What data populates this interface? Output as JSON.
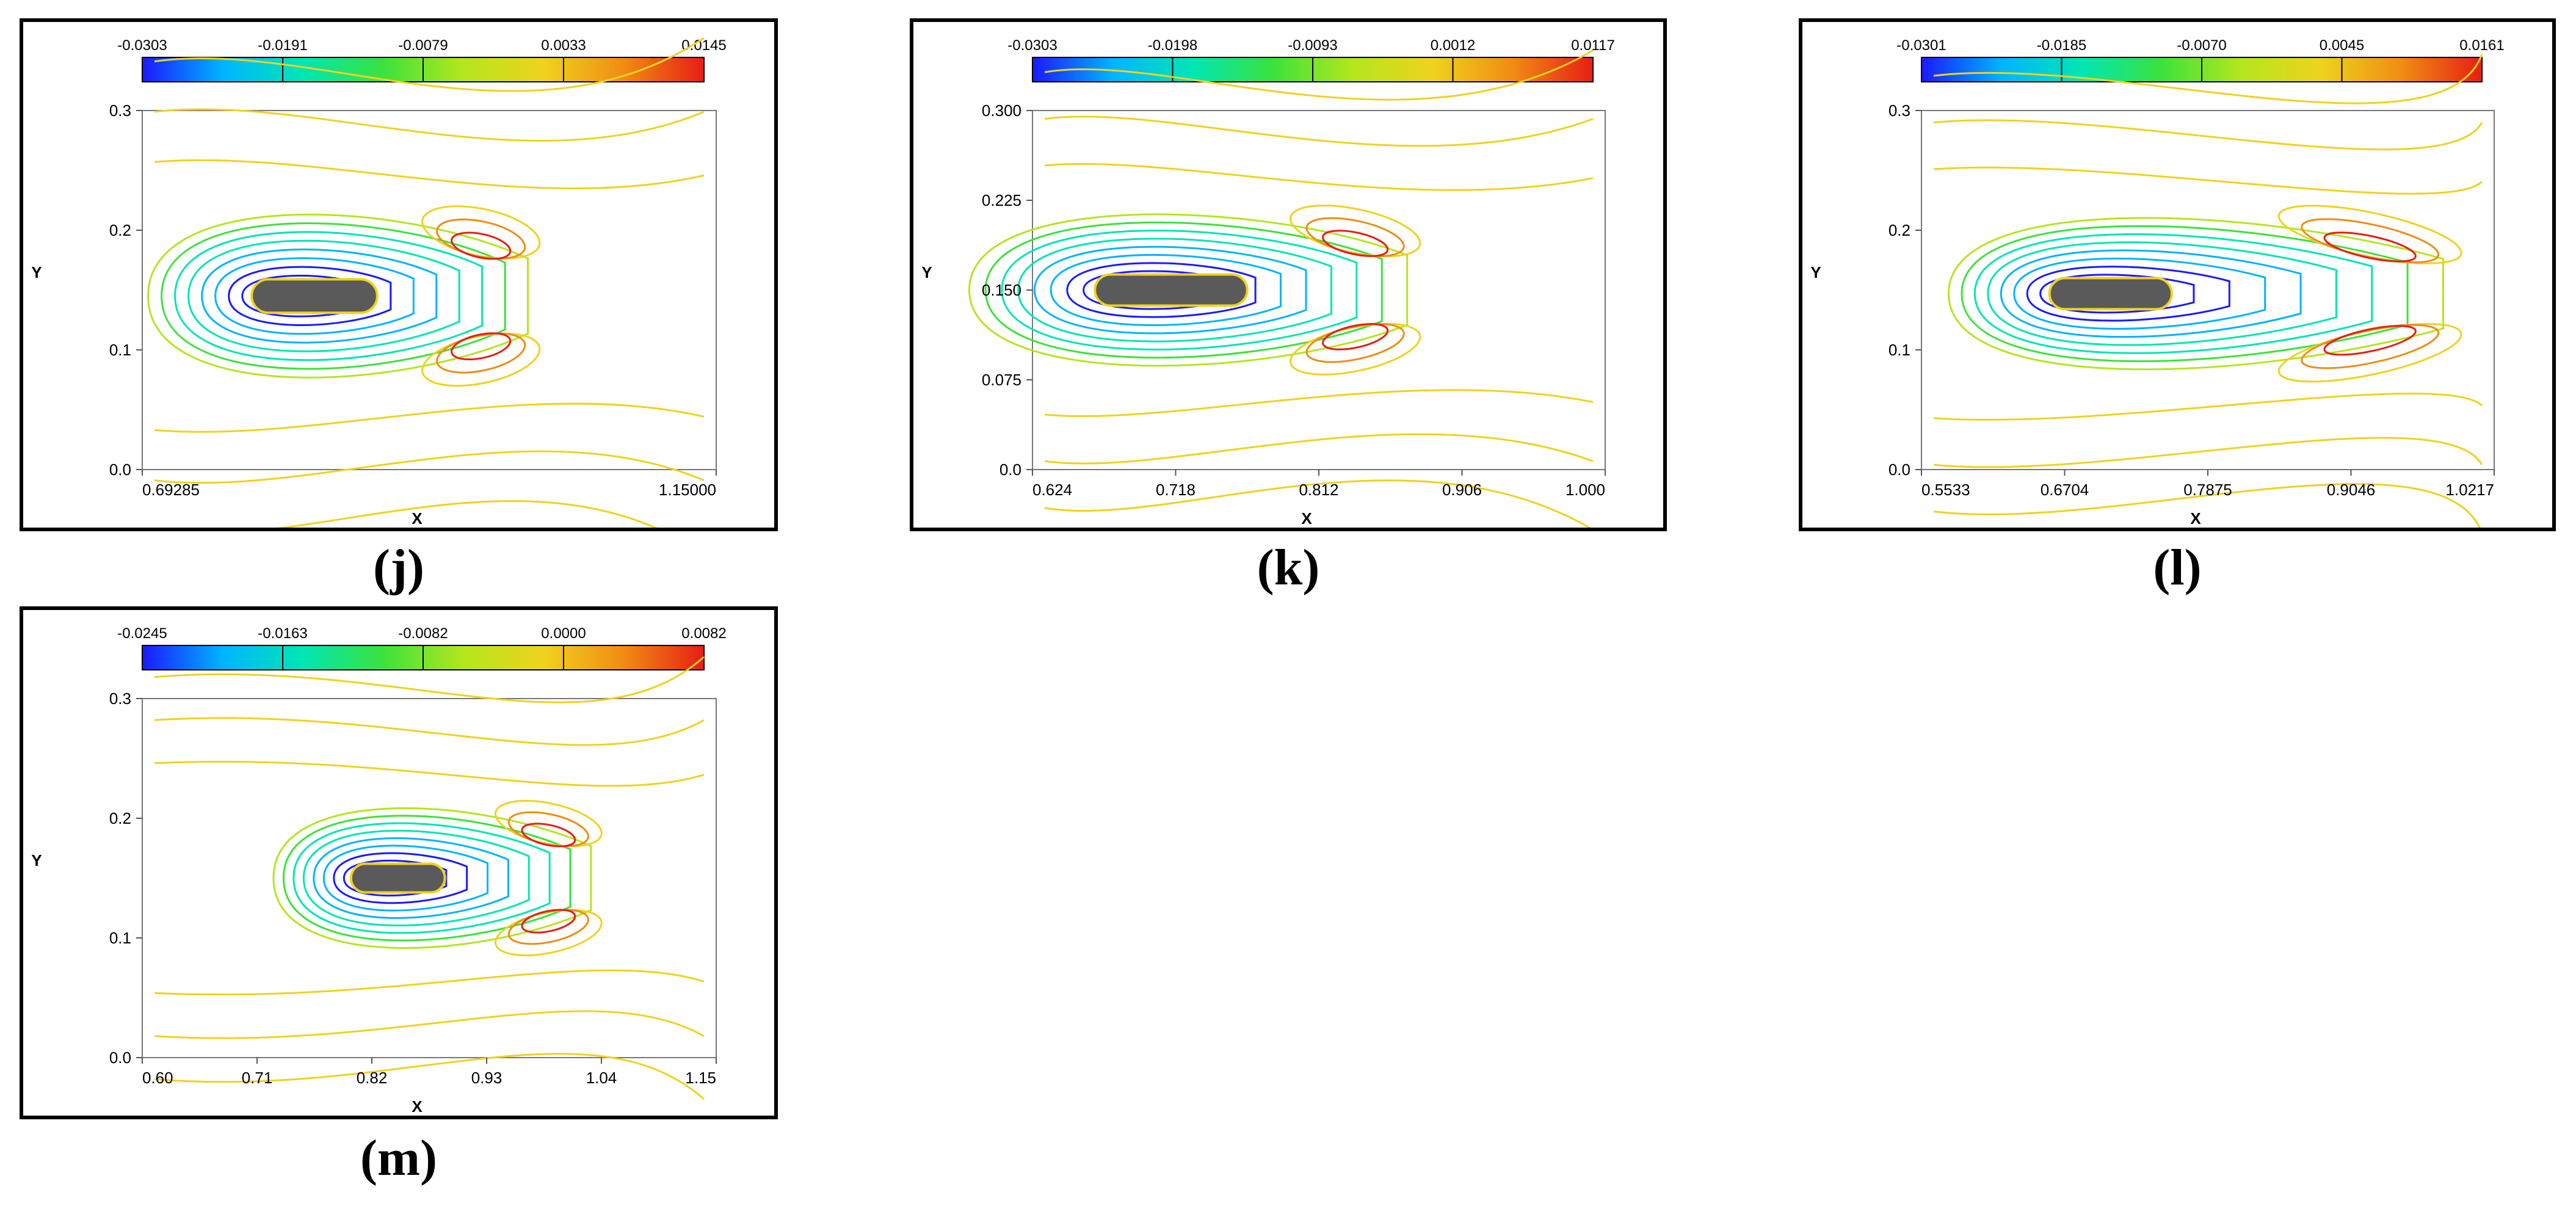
{
  "chart_data": [
    {
      "type": "contour",
      "panel_label": "j",
      "xlabel": "X",
      "ylabel": "Y",
      "xlim": [
        0.69285,
        1.15
      ],
      "ylim": [
        0.0,
        0.3
      ],
      "x_ticks": [
        "0.69285",
        "1.15000"
      ],
      "y_ticks": [
        "0.0",
        "0.1",
        "0.2",
        "0.3"
      ],
      "colorbar": {
        "min": -0.0303,
        "max": 0.0145,
        "ticks": [
          "-0.0303",
          "-0.0191",
          "-0.0079",
          "0.0033",
          "0.0145"
        ]
      },
      "body": {
        "center": [
          0.83,
          0.145
        ],
        "half_length": 0.05,
        "half_height": 0.014
      },
      "wake_end_x": 1.0
    },
    {
      "type": "contour",
      "panel_label": "k",
      "xlabel": "X",
      "ylabel": "Y",
      "xlim": [
        0.624,
        1.0
      ],
      "ylim": [
        0.0,
        0.3
      ],
      "x_ticks": [
        "0.624",
        "0.718",
        "0.812",
        "0.906",
        "1.000"
      ],
      "y_ticks": [
        "0.0",
        "0.075",
        "0.150",
        "0.225",
        "0.300"
      ],
      "colorbar": {
        "min": -0.0303,
        "max": 0.0117,
        "ticks": [
          "-0.0303",
          "-0.0198",
          "-0.0093",
          "0.0012",
          "0.0117"
        ]
      },
      "body": {
        "center": [
          0.715,
          0.15
        ],
        "half_length": 0.05,
        "half_height": 0.013
      },
      "wake_end_x": 0.87
    },
    {
      "type": "contour",
      "panel_label": "l",
      "xlabel": "X",
      "ylabel": "Y",
      "xlim": [
        0.5533,
        1.0217
      ],
      "ylim": [
        0.0,
        0.3
      ],
      "x_ticks": [
        "0.5533",
        "0.6704",
        "0.7875",
        "0.9046",
        "1.0217"
      ],
      "y_ticks": [
        "0.0",
        "0.1",
        "0.2",
        "0.3"
      ],
      "colorbar": {
        "min": -0.0301,
        "max": 0.0161,
        "ticks": [
          "-0.0301",
          "-0.0185",
          "-0.0070",
          "0.0045",
          "0.0161"
        ]
      },
      "body": {
        "center": [
          0.708,
          0.147
        ],
        "half_length": 0.05,
        "half_height": 0.013
      },
      "wake_end_x": 0.98
    },
    {
      "type": "contour",
      "panel_label": "m",
      "xlabel": "X",
      "ylabel": "Y",
      "xlim": [
        0.6,
        1.15
      ],
      "ylim": [
        0.0,
        0.3
      ],
      "x_ticks": [
        "0.60",
        "0.71",
        "0.82",
        "0.93",
        "1.04",
        "1.15"
      ],
      "y_ticks": [
        "0.0",
        "0.1",
        "0.2",
        "0.3"
      ],
      "colorbar": {
        "min": -0.0245,
        "max": 0.0082,
        "ticks": [
          "-0.0245",
          "-0.0163",
          "-0.0082",
          "0.0000",
          "0.0082"
        ]
      },
      "body": {
        "center": [
          0.845,
          0.15
        ],
        "half_length": 0.045,
        "half_height": 0.012
      },
      "wake_end_x": 1.03
    }
  ],
  "captions": [
    "(j)",
    "(k)",
    "(l)",
    "(m)"
  ],
  "colors": {
    "colormap": [
      "#1a1aff",
      "#00b4ff",
      "#00e6b4",
      "#3ce23c",
      "#b4e61e",
      "#f0d21e",
      "#f08c14",
      "#e61e14"
    ],
    "body_fill": "#5a5a5a",
    "frame": "#000000"
  }
}
